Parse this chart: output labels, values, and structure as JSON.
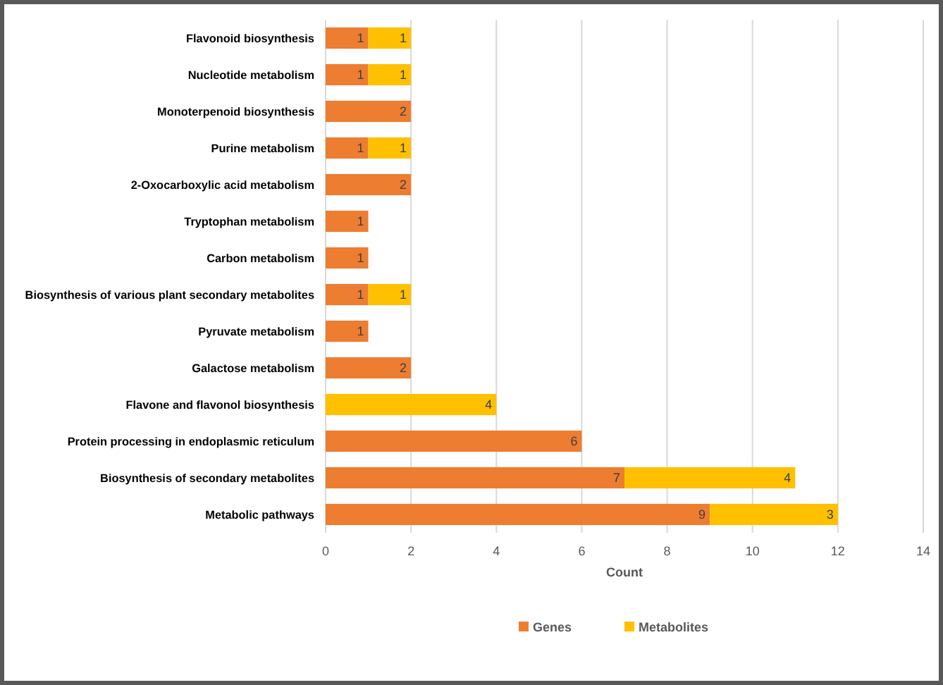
{
  "chart_data": {
    "type": "bar",
    "orientation": "horizontal",
    "stacked": true,
    "xlabel": "Count",
    "categories": [
      "Flavonoid biosynthesis",
      "Nucleotide metabolism",
      "Monoterpenoid biosynthesis",
      "Purine metabolism",
      "2-Oxocarboxylic acid metabolism",
      "Tryptophan metabolism",
      "Carbon metabolism",
      "Biosynthesis of various plant secondary metabolites",
      "Pyruvate metabolism",
      "Galactose metabolism",
      "Flavone and flavonol biosynthesis",
      "Protein processing in endoplasmic reticulum",
      "Biosynthesis of secondary metabolites",
      "Metabolic pathways"
    ],
    "series": [
      {
        "name": "Genes",
        "color": "#ed7d31",
        "values": [
          1,
          1,
          2,
          1,
          2,
          1,
          1,
          1,
          1,
          2,
          null,
          6,
          7,
          9
        ]
      },
      {
        "name": "Metabolites",
        "color": "#ffc000",
        "values": [
          1,
          1,
          null,
          1,
          null,
          null,
          null,
          1,
          null,
          null,
          4,
          null,
          4,
          3
        ]
      }
    ],
    "xlim": [
      0,
      14
    ],
    "xticks": [
      0,
      2,
      4,
      6,
      8,
      10,
      12,
      14
    ],
    "grid": "x",
    "legend": "bottom",
    "data_labels": true
  }
}
